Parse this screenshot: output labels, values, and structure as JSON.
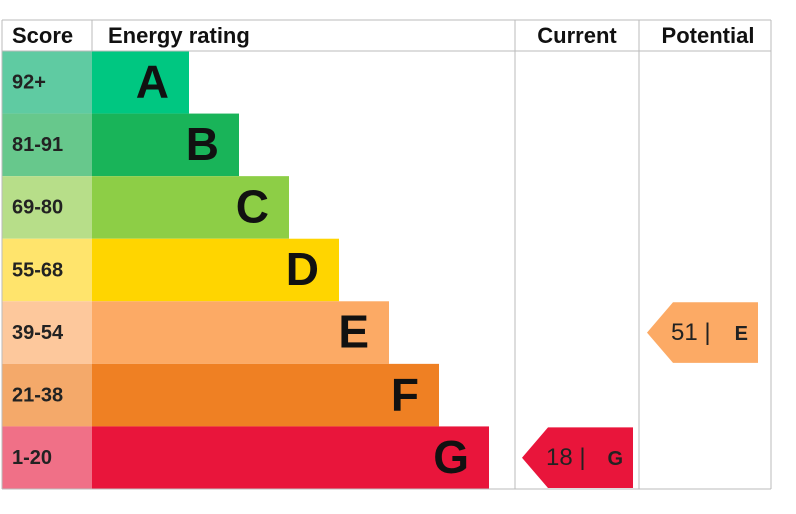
{
  "header": {
    "score": "Score",
    "energy": "Energy rating",
    "current": "Current",
    "potential": "Potential"
  },
  "bands": [
    {
      "score": "92+",
      "letter": "A",
      "color": "#00c781",
      "light": "#5fcba2"
    },
    {
      "score": "81-91",
      "letter": "B",
      "color": "#19b459",
      "light": "#67c88c"
    },
    {
      "score": "69-80",
      "letter": "C",
      "color": "#8dce46",
      "light": "#b7de89"
    },
    {
      "score": "55-68",
      "letter": "D",
      "color": "#ffd500",
      "light": "#ffe46c"
    },
    {
      "score": "39-54",
      "letter": "E",
      "color": "#fcaa65",
      "light": "#fdc89c"
    },
    {
      "score": "21-38",
      "letter": "F",
      "color": "#ef8023",
      "light": "#f4a96a"
    },
    {
      "score": "1-20",
      "letter": "G",
      "color": "#e9153b",
      "light": "#f07087"
    }
  ],
  "current": {
    "text": "18 |",
    "letter": "G"
  },
  "potential": {
    "text": "51 |",
    "letter": "E"
  }
}
